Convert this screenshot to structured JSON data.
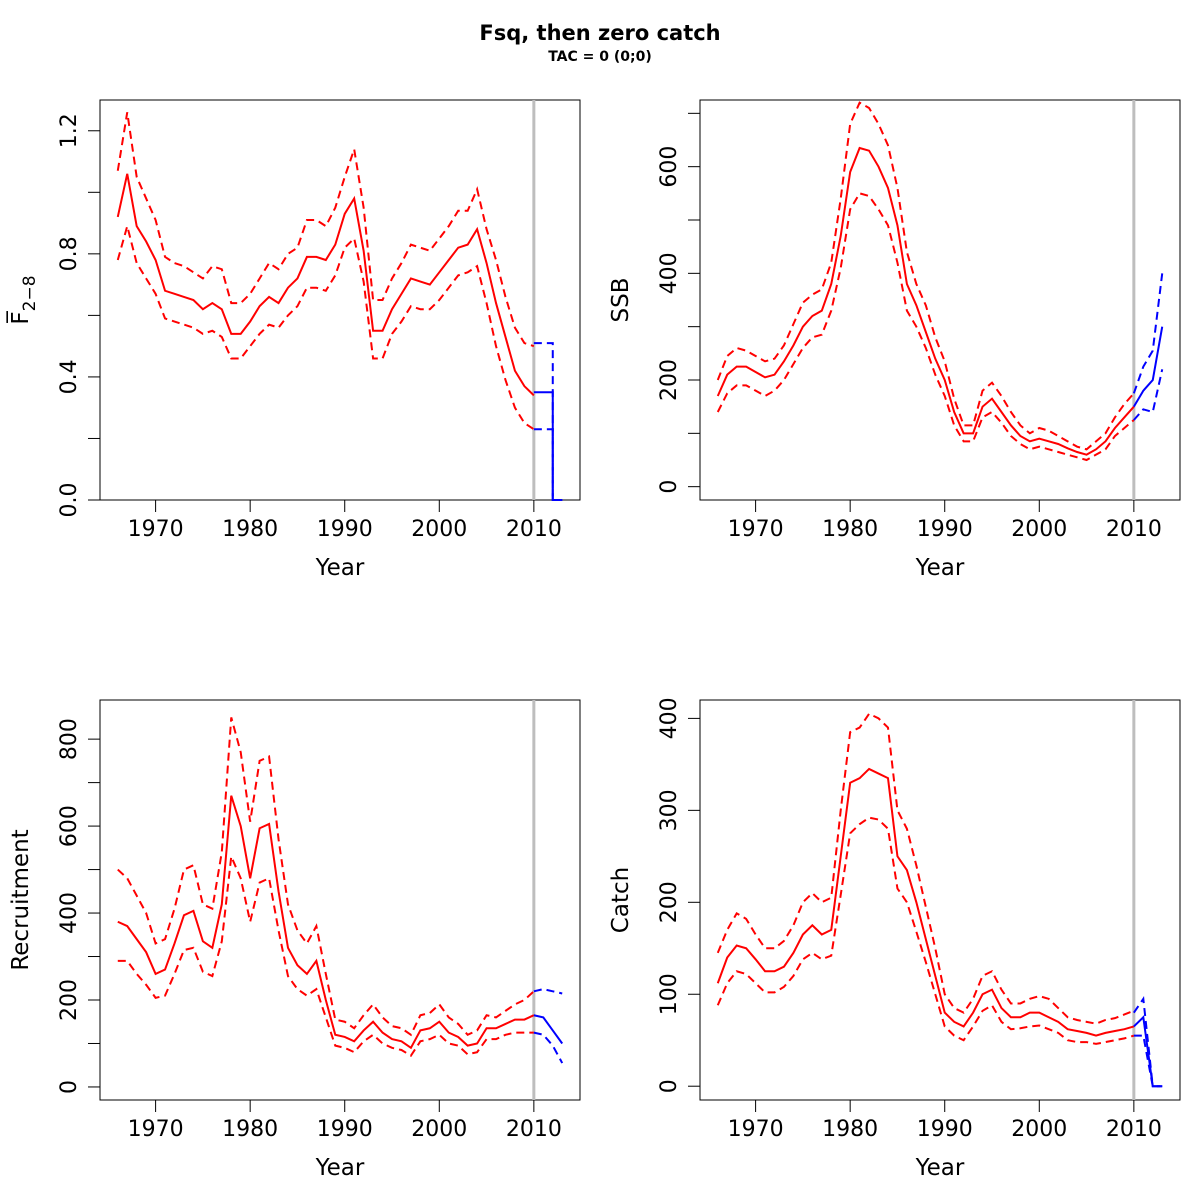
{
  "figure": {
    "title": "Fsq, then zero catch",
    "subtitle": "TAC = 0 (0;0)"
  },
  "colors": {
    "historic": "#ff0000",
    "forecast": "#0000ff",
    "vline": "#bebebe",
    "axis": "#000000"
  },
  "chart_data": [
    {
      "type": "line",
      "id": "f",
      "ylabel": "F̅",
      "ylabel_sub": "2−8",
      "xlabel": "Year",
      "xlim": [
        1966,
        2013
      ],
      "ylim": [
        0,
        1.3
      ],
      "xticks": [
        1970,
        1980,
        1990,
        2000,
        2010
      ],
      "xtick_labels": [
        "1970",
        "1980",
        "1990",
        "2000",
        "2010"
      ],
      "yticks_major": [
        0,
        0.4,
        0.8,
        1.2
      ],
      "ytick_labels": [
        "0.0",
        "0.4",
        "0.8",
        "1.2"
      ],
      "yticks_minor": [
        0.2,
        0.6,
        1.0
      ],
      "vline": 2010,
      "hist": {
        "years": [
          1966,
          1967,
          1968,
          1969,
          1970,
          1971,
          1972,
          1973,
          1974,
          1975,
          1976,
          1977,
          1978,
          1979,
          1980,
          1981,
          1982,
          1983,
          1984,
          1985,
          1986,
          1987,
          1988,
          1989,
          1990,
          1991,
          1992,
          1993,
          1994,
          1995,
          1996,
          1997,
          1998,
          1999,
          2000,
          2001,
          2002,
          2003,
          2004,
          2005,
          2006,
          2007,
          2008,
          2009,
          2010
        ],
        "mean": [
          0.92,
          1.06,
          0.89,
          0.84,
          0.78,
          0.68,
          0.67,
          0.66,
          0.65,
          0.62,
          0.64,
          0.62,
          0.54,
          0.54,
          0.58,
          0.63,
          0.66,
          0.64,
          0.69,
          0.72,
          0.79,
          0.79,
          0.78,
          0.83,
          0.93,
          0.98,
          0.81,
          0.55,
          0.55,
          0.62,
          0.67,
          0.72,
          0.71,
          0.7,
          0.74,
          0.78,
          0.82,
          0.83,
          0.88,
          0.77,
          0.64,
          0.53,
          0.42,
          0.37,
          0.34
        ],
        "upper": [
          1.07,
          1.26,
          1.05,
          0.98,
          0.91,
          0.79,
          0.77,
          0.76,
          0.74,
          0.72,
          0.76,
          0.75,
          0.64,
          0.64,
          0.67,
          0.72,
          0.77,
          0.75,
          0.8,
          0.82,
          0.91,
          0.91,
          0.89,
          0.95,
          1.05,
          1.14,
          0.95,
          0.65,
          0.65,
          0.72,
          0.77,
          0.83,
          0.82,
          0.81,
          0.85,
          0.89,
          0.94,
          0.94,
          1.01,
          0.88,
          0.78,
          0.66,
          0.56,
          0.51,
          0.5
        ],
        "lower": [
          0.78,
          0.89,
          0.77,
          0.72,
          0.67,
          0.59,
          0.58,
          0.57,
          0.56,
          0.54,
          0.55,
          0.53,
          0.46,
          0.46,
          0.5,
          0.54,
          0.57,
          0.56,
          0.6,
          0.63,
          0.69,
          0.69,
          0.68,
          0.73,
          0.82,
          0.85,
          0.71,
          0.46,
          0.46,
          0.54,
          0.58,
          0.63,
          0.62,
          0.62,
          0.65,
          0.69,
          0.73,
          0.74,
          0.76,
          0.64,
          0.5,
          0.39,
          0.3,
          0.25,
          0.23
        ]
      },
      "forecast": {
        "years": [
          2010,
          2011,
          2012,
          2013
        ],
        "mean": [
          0.35,
          0.35,
          0.0,
          0.0
        ],
        "upper": [
          0.51,
          0.51,
          0.0,
          0.0
        ],
        "lower": [
          0.23,
          0.23,
          0.0,
          0.0
        ],
        "step": true
      }
    },
    {
      "type": "line",
      "id": "ssb",
      "ylabel": "SSB",
      "xlabel": "Year",
      "xlim": [
        1966,
        2013
      ],
      "ylim": [
        -25,
        725
      ],
      "xticks": [
        1970,
        1980,
        1990,
        2000,
        2010
      ],
      "xtick_labels": [
        "1970",
        "1980",
        "1990",
        "2000",
        "2010"
      ],
      "yticks_major": [
        0,
        200,
        400,
        600
      ],
      "ytick_labels": [
        "0",
        "200",
        "400",
        "600"
      ],
      "yticks_minor": [
        100,
        300,
        500,
        700
      ],
      "vline": 2010,
      "hist": {
        "years": [
          1966,
          1967,
          1968,
          1969,
          1970,
          1971,
          1972,
          1973,
          1974,
          1975,
          1976,
          1977,
          1978,
          1979,
          1980,
          1981,
          1982,
          1983,
          1984,
          1985,
          1986,
          1987,
          1988,
          1989,
          1990,
          1991,
          1992,
          1993,
          1994,
          1995,
          1996,
          1997,
          1998,
          1999,
          2000,
          2001,
          2002,
          2003,
          2004,
          2005,
          2006,
          2007,
          2008,
          2009,
          2010
        ],
        "mean": [
          170,
          210,
          225,
          225,
          215,
          205,
          210,
          235,
          265,
          300,
          320,
          330,
          380,
          470,
          590,
          635,
          630,
          600,
          560,
          490,
          380,
          340,
          290,
          240,
          200,
          140,
          100,
          100,
          150,
          165,
          140,
          115,
          95,
          85,
          90,
          85,
          80,
          72,
          65,
          60,
          70,
          85,
          110,
          130,
          150
        ],
        "upper": [
          200,
          245,
          260,
          255,
          245,
          235,
          240,
          265,
          305,
          345,
          360,
          370,
          420,
          540,
          680,
          720,
          710,
          680,
          640,
          560,
          440,
          380,
          340,
          280,
          235,
          165,
          115,
          115,
          180,
          195,
          170,
          140,
          115,
          100,
          110,
          105,
          95,
          85,
          75,
          70,
          85,
          100,
          130,
          155,
          175
        ],
        "lower": [
          140,
          175,
          190,
          190,
          180,
          170,
          180,
          200,
          230,
          260,
          280,
          285,
          330,
          410,
          520,
          550,
          545,
          520,
          490,
          420,
          330,
          300,
          260,
          210,
          170,
          115,
          85,
          85,
          130,
          140,
          120,
          95,
          80,
          70,
          75,
          70,
          65,
          60,
          55,
          50,
          60,
          70,
          95,
          110,
          125
        ]
      },
      "forecast": {
        "years": [
          2010,
          2011,
          2012,
          2013
        ],
        "mean": [
          150,
          180,
          200,
          300
        ],
        "upper": [
          175,
          225,
          255,
          400
        ],
        "lower": [
          125,
          145,
          140,
          220
        ],
        "step": false
      }
    },
    {
      "type": "line",
      "id": "rec",
      "ylabel": "Recruitment",
      "xlabel": "Year",
      "xlim": [
        1966,
        2013
      ],
      "ylim": [
        -30,
        890
      ],
      "xticks": [
        1970,
        1980,
        1990,
        2000,
        2010
      ],
      "xtick_labels": [
        "1970",
        "1980",
        "1990",
        "2000",
        "2010"
      ],
      "yticks_major": [
        0,
        200,
        400,
        600,
        800
      ],
      "ytick_labels": [
        "0",
        "200",
        "400",
        "600",
        "800"
      ],
      "yticks_minor": [
        100,
        300,
        500,
        700
      ],
      "vline": 2010,
      "hist": {
        "years": [
          1966,
          1967,
          1968,
          1969,
          1970,
          1971,
          1972,
          1973,
          1974,
          1975,
          1976,
          1977,
          1978,
          1979,
          1980,
          1981,
          1982,
          1983,
          1984,
          1985,
          1986,
          1987,
          1988,
          1989,
          1990,
          1991,
          1992,
          1993,
          1994,
          1995,
          1996,
          1997,
          1998,
          1999,
          2000,
          2001,
          2002,
          2003,
          2004,
          2005,
          2006,
          2007,
          2008,
          2009,
          2010
        ],
        "mean": [
          380,
          370,
          340,
          310,
          260,
          270,
          330,
          395,
          405,
          335,
          320,
          420,
          670,
          600,
          480,
          595,
          605,
          450,
          320,
          280,
          260,
          290,
          200,
          120,
          115,
          105,
          130,
          150,
          125,
          110,
          105,
          90,
          130,
          135,
          150,
          125,
          115,
          95,
          100,
          135,
          135,
          145,
          155,
          155,
          165
        ],
        "upper": [
          500,
          480,
          440,
          400,
          330,
          340,
          410,
          500,
          510,
          420,
          410,
          540,
          850,
          770,
          610,
          750,
          760,
          570,
          420,
          360,
          330,
          370,
          260,
          155,
          150,
          135,
          165,
          190,
          160,
          140,
          135,
          120,
          165,
          170,
          190,
          160,
          145,
          120,
          130,
          165,
          160,
          175,
          190,
          200,
          220
        ],
        "lower": [
          290,
          290,
          260,
          235,
          205,
          210,
          260,
          315,
          320,
          265,
          255,
          335,
          530,
          480,
          380,
          470,
          480,
          360,
          255,
          225,
          210,
          225,
          160,
          95,
          90,
          80,
          105,
          120,
          100,
          90,
          85,
          72,
          105,
          110,
          120,
          100,
          95,
          75,
          80,
          110,
          110,
          120,
          125,
          125,
          125
        ]
      },
      "forecast": {
        "years": [
          2010,
          2011,
          2012,
          2013
        ],
        "mean": [
          165,
          160,
          130,
          100
        ],
        "upper": [
          220,
          225,
          220,
          215
        ],
        "lower": [
          125,
          120,
          95,
          55
        ],
        "step": false
      }
    },
    {
      "type": "line",
      "id": "catch",
      "ylabel": "Catch",
      "xlabel": "Year",
      "xlim": [
        1966,
        2013
      ],
      "ylim": [
        -15,
        420
      ],
      "xticks": [
        1970,
        1980,
        1990,
        2000,
        2010
      ],
      "xtick_labels": [
        "1970",
        "1980",
        "1990",
        "2000",
        "2010"
      ],
      "yticks_major": [
        0,
        100,
        200,
        300,
        400
      ],
      "ytick_labels": [
        "0",
        "100",
        "200",
        "300",
        "400"
      ],
      "yticks_minor": [],
      "vline": 2010,
      "hist": {
        "years": [
          1966,
          1967,
          1968,
          1969,
          1970,
          1971,
          1972,
          1973,
          1974,
          1975,
          1976,
          1977,
          1978,
          1979,
          1980,
          1981,
          1982,
          1983,
          1984,
          1985,
          1986,
          1987,
          1988,
          1989,
          1990,
          1991,
          1992,
          1993,
          1994,
          1995,
          1996,
          1997,
          1998,
          1999,
          2000,
          2001,
          2002,
          2003,
          2004,
          2005,
          2006,
          2007,
          2008,
          2009,
          2010
        ],
        "mean": [
          112,
          140,
          153,
          150,
          138,
          125,
          125,
          130,
          145,
          165,
          175,
          165,
          170,
          250,
          330,
          335,
          345,
          340,
          335,
          250,
          235,
          200,
          160,
          120,
          80,
          70,
          65,
          80,
          100,
          105,
          85,
          75,
          75,
          80,
          80,
          75,
          70,
          62,
          60,
          58,
          55,
          58,
          60,
          62,
          65
        ],
        "upper": [
          145,
          170,
          188,
          182,
          165,
          150,
          150,
          158,
          175,
          200,
          210,
          200,
          205,
          300,
          385,
          390,
          405,
          400,
          390,
          300,
          280,
          240,
          195,
          150,
          100,
          85,
          80,
          95,
          120,
          125,
          105,
          90,
          90,
          95,
          98,
          95,
          85,
          75,
          72,
          70,
          68,
          72,
          74,
          78,
          82
        ],
        "lower": [
          88,
          112,
          125,
          122,
          112,
          102,
          102,
          108,
          120,
          138,
          145,
          138,
          142,
          208,
          275,
          285,
          292,
          290,
          280,
          215,
          200,
          168,
          135,
          100,
          65,
          55,
          50,
          65,
          82,
          88,
          70,
          62,
          63,
          65,
          66,
          62,
          58,
          50,
          48,
          48,
          46,
          48,
          50,
          52,
          55
        ]
      },
      "forecast": {
        "years": [
          2010,
          2011,
          2012,
          2013
        ],
        "mean": [
          65,
          75,
          0,
          0
        ],
        "upper": [
          80,
          95,
          0,
          0
        ],
        "lower": [
          55,
          55,
          0,
          0
        ],
        "step": false
      }
    }
  ]
}
